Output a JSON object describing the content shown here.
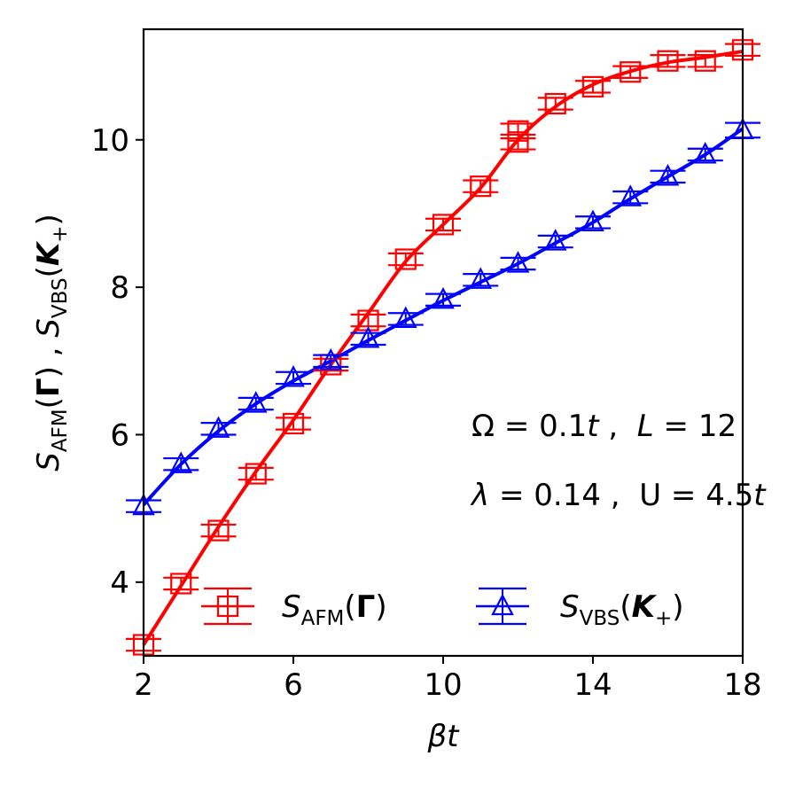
{
  "chart_data": {
    "type": "line",
    "xlabel": "βt",
    "ylabel_parts": {
      "s1": "S",
      "sub1": "AFM",
      "arg1_open": "(",
      "arg1": "Γ",
      "arg1_close": ")",
      "sep": " , ",
      "s2": "S",
      "sub2": "VBS",
      "arg2_open": "(",
      "arg2": "K",
      "arg2_sub": "+",
      "arg2_close": ")"
    },
    "xlim": [
      2,
      18
    ],
    "ylim": [
      3.0,
      11.5
    ],
    "xticks": [
      2,
      6,
      10,
      14,
      18
    ],
    "yticks": [
      4,
      6,
      8,
      10
    ],
    "grid": false,
    "legend_position": "lower-right",
    "annotations": [
      {
        "parts": [
          "Ω",
          " = 0.1",
          "t",
          " ,  ",
          "L",
          " = 12"
        ]
      },
      {
        "parts": [
          "λ",
          " = 0.14 ,  U = 4.5",
          "t"
        ]
      }
    ],
    "series": [
      {
        "name": "S_AFM(Γ)",
        "legend_label": {
          "s": "S",
          "sub": "AFM",
          "arg_open": "(",
          "arg": "Γ",
          "arg_close": ")"
        },
        "color": "#ff0000",
        "marker": "square",
        "x": [
          2,
          3,
          4,
          5,
          6,
          7,
          8,
          9,
          10,
          11,
          12,
          12,
          13,
          14,
          15,
          16,
          17,
          18
        ],
        "y": [
          3.15,
          3.98,
          4.7,
          5.47,
          6.15,
          6.95,
          7.55,
          8.38,
          8.85,
          9.37,
          9.97,
          10.12,
          10.49,
          10.72,
          10.92,
          11.07,
          11.07,
          11.22
        ],
        "yerr": [
          0.08,
          0.08,
          0.08,
          0.08,
          0.08,
          0.08,
          0.08,
          0.08,
          0.08,
          0.08,
          0.1,
          0.1,
          0.08,
          0.08,
          0.08,
          0.08,
          0.08,
          0.08
        ],
        "fit_y": [
          3.15,
          3.95,
          4.75,
          5.5,
          6.2,
          6.95,
          7.65,
          8.35,
          8.85,
          9.35,
          10.0,
          10.45,
          10.75,
          10.93,
          11.05,
          11.12,
          11.2
        ]
      },
      {
        "name": "S_VBS(K+)",
        "legend_label": {
          "s": "S",
          "sub": "VBS",
          "arg_open": "(",
          "arg": "K",
          "arg_sub": "+",
          "arg_close": ")"
        },
        "color": "#0000ff",
        "marker": "triangle",
        "x": [
          2,
          3,
          4,
          5,
          6,
          7,
          8,
          9,
          10,
          11,
          12,
          13,
          14,
          15,
          16,
          17,
          18
        ],
        "y": [
          5.03,
          5.6,
          6.08,
          6.42,
          6.77,
          7.0,
          7.3,
          7.57,
          7.83,
          8.1,
          8.32,
          8.62,
          8.88,
          9.22,
          9.5,
          9.8,
          10.13
        ],
        "yerr": [
          0.08,
          0.08,
          0.08,
          0.08,
          0.08,
          0.08,
          0.08,
          0.08,
          0.08,
          0.08,
          0.08,
          0.08,
          0.08,
          0.08,
          0.08,
          0.08,
          0.1
        ],
        "fit_y": [
          5.05,
          5.6,
          6.05,
          6.42,
          6.73,
          7.0,
          7.28,
          7.55,
          7.82,
          8.07,
          8.32,
          8.6,
          8.88,
          9.2,
          9.5,
          9.8,
          10.15
        ]
      }
    ]
  }
}
